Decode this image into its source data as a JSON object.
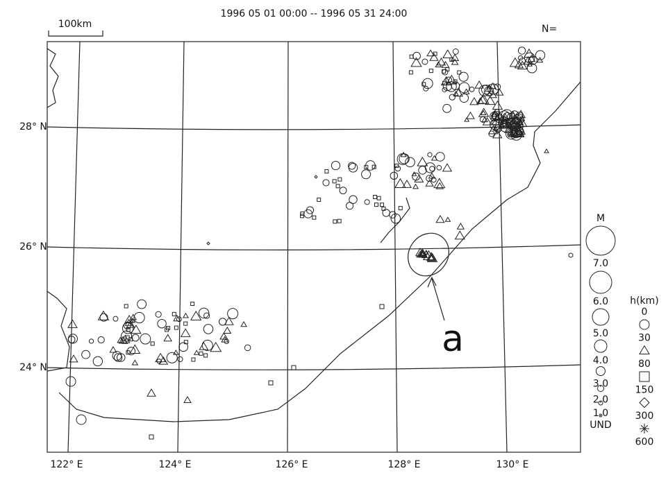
{
  "header": {
    "title": "1996 05 01 00:00 -- 1996 05 31 24:00",
    "count_label": "N=",
    "scale_bar": "100km"
  },
  "map": {
    "lat_labels": [
      "28° N",
      "26° N",
      "24° N"
    ],
    "lon_labels": [
      "122° E",
      "124° E",
      "126° E",
      "128° E",
      "130° E"
    ],
    "annotation": "a"
  },
  "legend": {
    "magnitude": {
      "title": "M",
      "items": [
        "7.0",
        "6.0",
        "5.0",
        "4.0",
        "3.0",
        "2.0",
        "1.0",
        "UND"
      ]
    },
    "depth": {
      "title": "h(km)",
      "items": [
        "0",
        "30",
        "80",
        "150",
        "300",
        "600"
      ]
    }
  }
}
